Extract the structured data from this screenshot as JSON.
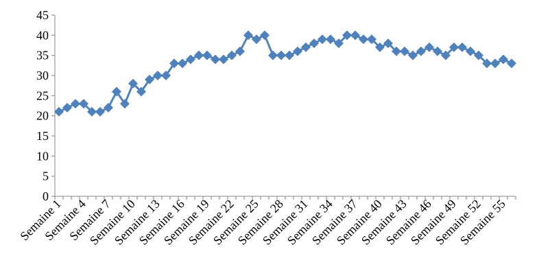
{
  "chart_data": {
    "type": "line",
    "categories": [
      "Semaine 1",
      null,
      null,
      "Semaine 4",
      null,
      null,
      "Semaine 7",
      null,
      null,
      "Semaine 10",
      null,
      null,
      "Semaine 13",
      null,
      null,
      "Semaine 16",
      null,
      null,
      "Semaine 19",
      null,
      null,
      "Semaine 22",
      null,
      null,
      "Semaine 25",
      null,
      null,
      "Semaine 28",
      null,
      null,
      "Semaine 31",
      null,
      null,
      "Semaine 34",
      null,
      null,
      "Semaine 37",
      null,
      null,
      "Semaine 40",
      null,
      null,
      "Semaine 43",
      null,
      null,
      "Semaine 46",
      null,
      null,
      "Semaine 49",
      null,
      null,
      "Semaine 52",
      null,
      null,
      "Semaine 55",
      null
    ],
    "values": [
      21,
      22,
      23,
      23,
      21,
      21,
      22,
      26,
      23,
      28,
      26,
      29,
      30,
      30,
      33,
      33,
      34,
      35,
      35,
      34,
      34,
      35,
      36,
      40,
      39,
      40,
      35,
      35,
      35,
      36,
      37,
      38,
      39,
      39,
      38,
      40,
      40,
      39,
      39,
      37,
      38,
      36,
      36,
      35,
      36,
      37,
      36,
      35,
      37,
      37,
      36,
      35,
      33,
      33,
      34,
      33
    ],
    "color": "#4f81bd",
    "ylim": [
      0,
      45
    ],
    "yticks": [
      0,
      5,
      10,
      15,
      20,
      25,
      30,
      35,
      40,
      45
    ],
    "grid": false
  }
}
